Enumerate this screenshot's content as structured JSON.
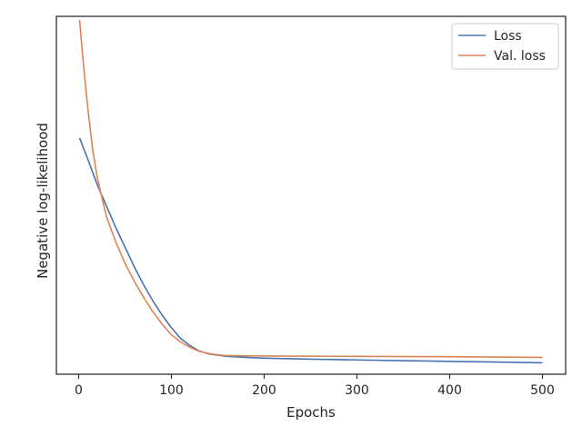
{
  "chart_data": {
    "type": "line",
    "title": "",
    "xlabel": "Epochs",
    "ylabel": "Negative log-likelihood",
    "xlim": [
      -24,
      525
    ],
    "xticks": [
      0,
      100,
      200,
      300,
      400,
      500
    ],
    "ylim": [
      0,
      1
    ],
    "yticks_visible": false,
    "grid": false,
    "legend_position": "top-right",
    "series": [
      {
        "name": "Loss",
        "color": "#4c72b0",
        "x": [
          1,
          10,
          20,
          30,
          40,
          50,
          60,
          70,
          80,
          90,
          100,
          110,
          120,
          130,
          140,
          150,
          160,
          180,
          200,
          250,
          300,
          350,
          400,
          450,
          500
        ],
        "y": [
          0.66,
          0.6,
          0.53,
          0.47,
          0.41,
          0.355,
          0.3,
          0.25,
          0.205,
          0.165,
          0.13,
          0.1,
          0.08,
          0.065,
          0.057,
          0.053,
          0.05,
          0.047,
          0.045,
          0.042,
          0.04,
          0.038,
          0.036,
          0.034,
          0.032
        ]
      },
      {
        "name": "Val. loss",
        "color": "#dd8452",
        "x": [
          1,
          5,
          10,
          15,
          20,
          30,
          40,
          50,
          60,
          70,
          80,
          90,
          100,
          110,
          120,
          130,
          140,
          150,
          160,
          200,
          300,
          400,
          500
        ],
        "y": [
          0.99,
          0.87,
          0.74,
          0.63,
          0.55,
          0.44,
          0.37,
          0.31,
          0.26,
          0.215,
          0.175,
          0.14,
          0.11,
          0.09,
          0.075,
          0.064,
          0.058,
          0.054,
          0.052,
          0.051,
          0.05,
          0.049,
          0.047
        ]
      }
    ]
  }
}
